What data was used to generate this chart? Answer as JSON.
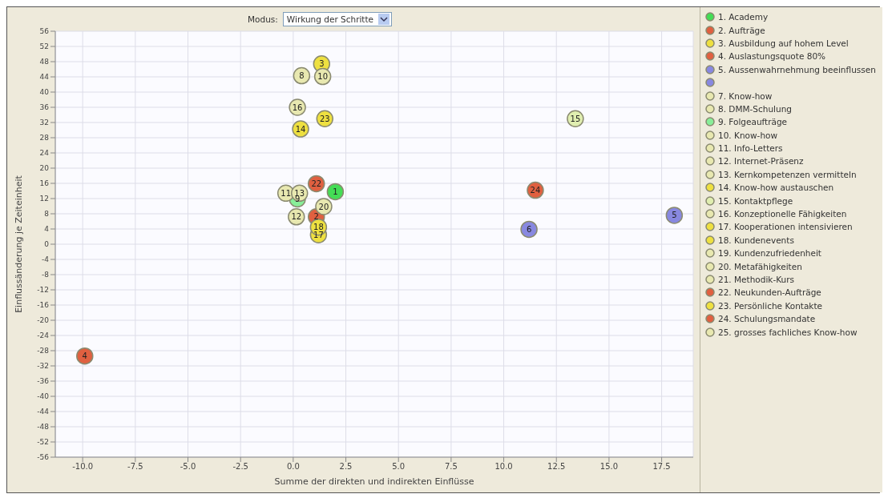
{
  "chart_data": {
    "type": "scatter",
    "xlabel": "Summe der direkten und indirekten Einflüsse",
    "ylabel": "Einflussänderung je Zeiteinheit",
    "annotations": [
      "Modus:",
      "Wirkung der Schritte",
      {
        "text": "1",
        "x": 2.0,
        "y": 13.8
      },
      {
        "text": "2",
        "x": 1.1,
        "y": 7.2
      },
      {
        "text": "3",
        "x": 1.35,
        "y": 47.4
      },
      {
        "text": "4",
        "x": -9.9,
        "y": -29.4
      },
      {
        "text": "5",
        "x": 18.1,
        "y": 7.6
      },
      {
        "text": "6",
        "x": 11.2,
        "y": 3.9
      },
      {
        "text": "8",
        "x": 0.4,
        "y": 44.3
      },
      {
        "text": "9",
        "x": 0.2,
        "y": 11.9
      },
      {
        "text": "10",
        "x": 1.4,
        "y": 44.1
      },
      {
        "text": "11",
        "x": -0.35,
        "y": 13.4
      },
      {
        "text": "12",
        "x": 0.15,
        "y": 7.2
      },
      {
        "text": "13",
        "x": 0.3,
        "y": 13.4
      },
      {
        "text": "14",
        "x": 0.35,
        "y": 30.3
      },
      {
        "text": "15",
        "x": 13.4,
        "y": 33.0
      },
      {
        "text": "16",
        "x": 0.2,
        "y": 36.0
      },
      {
        "text": "17",
        "x": 1.2,
        "y": 2.5
      },
      {
        "text": "18",
        "x": 1.2,
        "y": 4.5
      },
      {
        "text": "20",
        "x": 1.45,
        "y": 9.9
      },
      {
        "text": "22",
        "x": 1.1,
        "y": 15.9
      },
      {
        "text": "23",
        "x": 1.5,
        "y": 33.0
      },
      {
        "text": "24",
        "x": 11.5,
        "y": 14.2
      }
    ],
    "xlim": [
      -11.3,
      19.0
    ],
    "xticks": [
      {
        "value": -10,
        "label": "-10.0"
      },
      {
        "value": -7.5,
        "label": "-7.5"
      },
      {
        "value": -5,
        "label": "-5.0"
      },
      {
        "value": -2.5,
        "label": "-2.5"
      },
      {
        "value": 0,
        "label": "0.0"
      },
      {
        "value": 2.5,
        "label": "2.5"
      },
      {
        "value": 5,
        "label": "5.0"
      },
      {
        "value": 7.5,
        "label": "7.5"
      },
      {
        "value": 10,
        "label": "10.0"
      },
      {
        "value": 12.5,
        "label": "12.5"
      },
      {
        "value": 15,
        "label": "15.0"
      },
      {
        "value": 17.5,
        "label": "17.5"
      }
    ],
    "ylim": [
      -56,
      56
    ],
    "yticks": [
      56,
      52,
      48,
      44,
      40,
      36,
      32,
      28,
      24,
      20,
      16,
      12,
      8,
      4,
      0,
      -4,
      -8,
      -12,
      -16,
      -20,
      -24,
      -28,
      -32,
      -36,
      -40,
      -44,
      -48,
      -52,
      -56
    ],
    "grid": true,
    "legend": "right",
    "marker": "circle",
    "series": [
      {
        "name": "1. Academy",
        "color": "#44dd55",
        "x": [
          2.0
        ],
        "values": [
          13.8
        ]
      },
      {
        "name": "2. Aufträge",
        "color": "#e06040",
        "x": [
          1.1
        ],
        "values": [
          7.2
        ]
      },
      {
        "name": "3. Ausbildung auf hohem Level",
        "color": "#eee040",
        "x": [
          1.35
        ],
        "values": [
          47.4
        ]
      },
      {
        "name": "4. Auslastungsquote 80%",
        "color": "#e06040",
        "x": [
          -9.9
        ],
        "values": [
          -29.4
        ]
      },
      {
        "name": "5. Aussenwahrnehmung beeinflussen",
        "color": "#8888e0",
        "x": [
          18.1
        ],
        "values": [
          7.6
        ]
      },
      {
        "color": "#8888e0",
        "x": [
          11.2
        ],
        "values": [
          3.9
        ]
      },
      {
        "name": "7. Know-how",
        "color": "#e8e8b0"
      },
      {
        "name": "8. DMM-Schulung",
        "color": "#e8e8b0",
        "x": [
          0.4
        ],
        "values": [
          44.3
        ]
      },
      {
        "name": "9. Folgeaufträge",
        "color": "#88ee99",
        "x": [
          0.2
        ],
        "values": [
          11.9
        ]
      },
      {
        "name": "10. Know-how",
        "color": "#e8e8b0",
        "x": [
          1.4
        ],
        "values": [
          44.1
        ]
      },
      {
        "name": "11. Info-Letters",
        "color": "#e8e8b0",
        "x": [
          -0.35
        ],
        "values": [
          13.4
        ]
      },
      {
        "name": "12. Internet-Präsenz",
        "color": "#e8e8b0",
        "x": [
          0.15
        ],
        "values": [
          7.2
        ]
      },
      {
        "name": "13. Kernkompetenzen vermitteln",
        "color": "#e8e8b0",
        "x": [
          0.3
        ],
        "values": [
          13.4
        ]
      },
      {
        "name": "14. Know-how austauschen",
        "color": "#eee040",
        "x": [
          0.35
        ],
        "values": [
          30.3
        ]
      },
      {
        "name": "15. Kontaktpflege",
        "color": "#e0eeb0",
        "x": [
          13.4
        ],
        "values": [
          33.0
        ]
      },
      {
        "name": "16. Konzeptionelle Fähigkeiten",
        "color": "#e8e8b0",
        "x": [
          0.2
        ],
        "values": [
          36.0
        ]
      },
      {
        "name": "17. Kooperationen intensivieren",
        "color": "#eee040",
        "x": [
          1.2
        ],
        "values": [
          2.5
        ]
      },
      {
        "name": "18. Kundenevents",
        "color": "#eee040",
        "x": [
          1.2
        ],
        "values": [
          4.5
        ]
      },
      {
        "name": "19. Kundenzufriedenheit",
        "color": "#e8e8b0"
      },
      {
        "name": "20. Metafähigkeiten",
        "color": "#e8e8b0",
        "x": [
          1.45
        ],
        "values": [
          9.9
        ]
      },
      {
        "name": "21. Methodik-Kurs",
        "color": "#e8e8b0"
      },
      {
        "name": "22. Neukunden-Aufträge",
        "color": "#e06040",
        "x": [
          1.1
        ],
        "values": [
          15.9
        ]
      },
      {
        "name": "23. Persönliche Kontakte",
        "color": "#eee040",
        "x": [
          1.5
        ],
        "values": [
          33.0
        ]
      },
      {
        "name": "24. Schulungsmandate",
        "color": "#e06040",
        "x": [
          11.5
        ],
        "values": [
          14.2
        ]
      },
      {
        "name": "25. grosses fachliches Know-how",
        "color": "#e8e8b0"
      }
    ]
  }
}
